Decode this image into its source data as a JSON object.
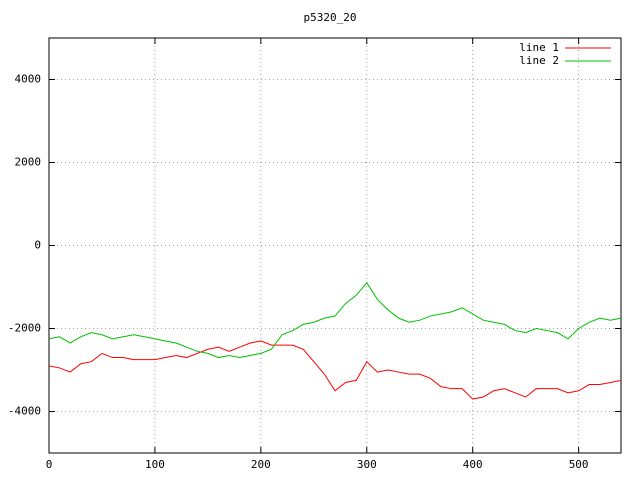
{
  "chart_data": {
    "type": "line",
    "title": "p5320_20",
    "x": [
      0,
      10,
      20,
      30,
      40,
      50,
      60,
      70,
      80,
      90,
      100,
      110,
      120,
      130,
      140,
      150,
      160,
      170,
      180,
      190,
      200,
      210,
      220,
      230,
      240,
      250,
      260,
      270,
      280,
      290,
      300,
      310,
      320,
      330,
      340,
      350,
      360,
      370,
      380,
      390,
      400,
      410,
      420,
      430,
      440,
      450,
      460,
      470,
      480,
      490,
      500,
      510,
      520,
      530,
      540
    ],
    "series": [
      {
        "name": "line 1",
        "color": "#ff0000",
        "values": [
          -2900,
          -2950,
          -3050,
          -2850,
          -2800,
          -2600,
          -2700,
          -2700,
          -2750,
          -2750,
          -2750,
          -2700,
          -2650,
          -2700,
          -2600,
          -2500,
          -2450,
          -2550,
          -2450,
          -2350,
          -2300,
          -2400,
          -2400,
          -2400,
          -2500,
          -2800,
          -3100,
          -3500,
          -3300,
          -3250,
          -2800,
          -3050,
          -3000,
          -3050,
          -3100,
          -3100,
          -3200,
          -3400,
          -3450,
          -3450,
          -3700,
          -3650,
          -3500,
          -3450,
          -3550,
          -3650,
          -3450,
          -3450,
          -3450,
          -3550,
          -3500,
          -3350,
          -3350,
          -3300,
          -3250
        ]
      },
      {
        "name": "line 2",
        "color": "#00c000",
        "values": [
          -2250,
          -2200,
          -2350,
          -2200,
          -2100,
          -2150,
          -2250,
          -2200,
          -2150,
          -2200,
          -2250,
          -2300,
          -2350,
          -2450,
          -2550,
          -2600,
          -2700,
          -2650,
          -2700,
          -2650,
          -2600,
          -2500,
          -2150,
          -2050,
          -1900,
          -1850,
          -1750,
          -1700,
          -1400,
          -1200,
          -900,
          -1300,
          -1550,
          -1750,
          -1850,
          -1800,
          -1700,
          -1650,
          -1600,
          -1500,
          -1650,
          -1800,
          -1850,
          -1900,
          -2050,
          -2100,
          -2000,
          -2050,
          -2100,
          -2250,
          -2000,
          -1850,
          -1750,
          -1800,
          -1750
        ]
      }
    ],
    "xlim": [
      0,
      540
    ],
    "xticks": [
      0,
      100,
      200,
      300,
      400,
      500
    ],
    "ylim": [
      -5000,
      5000
    ],
    "yticks": [
      -4000,
      -2000,
      0,
      2000,
      4000
    ],
    "grid": true,
    "legend": "top-right"
  }
}
